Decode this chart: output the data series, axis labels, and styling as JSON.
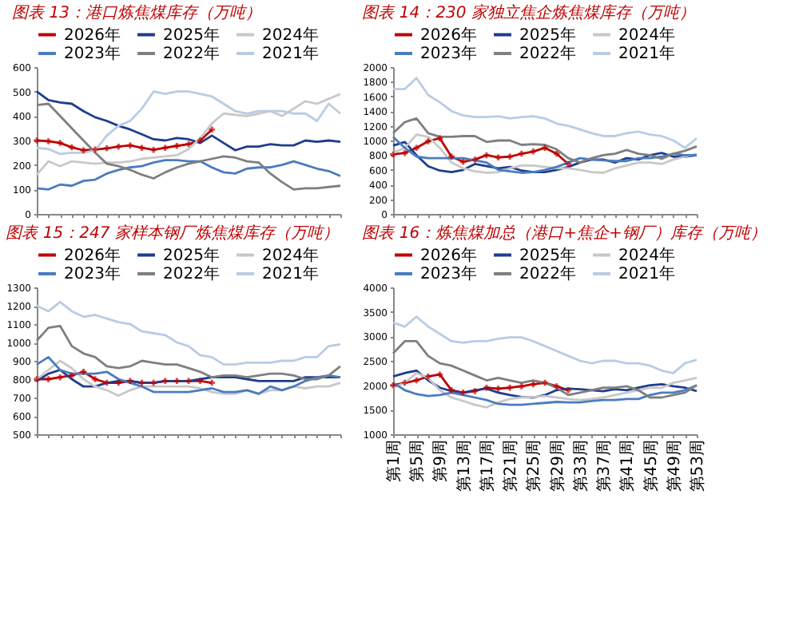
{
  "chart_data": [
    {
      "type": "line",
      "title": "图表 13：港口炼焦煤库存（万吨）",
      "categories": [
        null,
        null,
        null,
        null,
        null,
        null,
        null,
        null,
        null,
        null,
        null,
        null,
        null,
        null,
        null,
        null,
        null,
        null,
        null,
        null,
        null,
        null,
        null,
        null,
        null,
        null,
        null
      ],
      "ylim": [
        0,
        600
      ],
      "yticks": [
        0,
        100,
        200,
        300,
        400,
        500,
        600
      ],
      "tick_labels": "y",
      "legend": "top",
      "grid": false,
      "series": [
        {
          "name": "2026年",
          "color": "#c00000",
          "marker": "cross",
          "values": [
            300,
            297,
            290,
            272,
            260,
            263,
            268,
            275,
            280,
            270,
            262,
            270,
            278,
            285,
            300,
            345,
            null,
            null,
            null,
            null,
            null,
            null,
            null,
            null,
            null,
            null,
            null
          ]
        },
        {
          "name": "2025年",
          "color": "#1f3d8c",
          "values": [
            500,
            465,
            455,
            450,
            420,
            395,
            380,
            360,
            345,
            325,
            305,
            300,
            310,
            305,
            290,
            320,
            290,
            260,
            275,
            275,
            285,
            280,
            280,
            300,
            295,
            300,
            295
          ]
        },
        {
          "name": "2024年",
          "color": "#c8c8c8",
          "values": [
            160,
            215,
            195,
            215,
            210,
            205,
            210,
            210,
            215,
            225,
            230,
            235,
            240,
            265,
            310,
            370,
            410,
            405,
            400,
            410,
            420,
            400,
            430,
            460,
            450,
            470,
            490
          ]
        },
        {
          "name": "2023年",
          "color": "#4a7cc0",
          "values": [
            105,
            100,
            120,
            115,
            135,
            140,
            165,
            180,
            190,
            195,
            210,
            220,
            220,
            215,
            215,
            190,
            170,
            165,
            185,
            190,
            190,
            200,
            215,
            200,
            185,
            175,
            155
          ]
        },
        {
          "name": "2022年",
          "color": "#7f7f7f",
          "values": [
            445,
            450,
            400,
            350,
            300,
            250,
            205,
            195,
            180,
            160,
            145,
            170,
            190,
            205,
            215,
            225,
            235,
            230,
            215,
            210,
            165,
            130,
            100,
            105,
            105,
            110,
            115
          ]
        },
        {
          "name": "2021年",
          "color": "#b8cce4",
          "values": [
            270,
            265,
            245,
            250,
            250,
            260,
            320,
            360,
            380,
            430,
            500,
            490,
            500,
            500,
            490,
            480,
            450,
            420,
            410,
            420,
            420,
            420,
            410,
            410,
            380,
            450,
            410
          ]
        }
      ]
    },
    {
      "type": "line",
      "title": "图表 14：230 家独立焦企炼焦煤库存（万吨）",
      "categories": [
        null,
        null,
        null,
        null,
        null,
        null,
        null,
        null,
        null,
        null,
        null,
        null,
        null,
        null,
        null,
        null,
        null,
        null,
        null,
        null,
        null,
        null,
        null,
        null,
        null,
        null,
        null
      ],
      "ylim": [
        0,
        2000
      ],
      "yticks": [
        0,
        200,
        400,
        600,
        800,
        1000,
        1200,
        1400,
        1600,
        1800,
        2000
      ],
      "tick_labels": "y",
      "legend": "top",
      "grid": false,
      "series": [
        {
          "name": "2026年",
          "color": "#c00000",
          "marker": "cross",
          "values": [
            810,
            830,
            900,
            990,
            1030,
            780,
            710,
            740,
            800,
            770,
            780,
            820,
            850,
            900,
            820,
            680,
            null,
            null,
            null,
            null,
            null,
            null,
            null,
            null,
            null,
            null,
            null
          ]
        },
        {
          "name": "2025年",
          "color": "#1f3d8c",
          "values": [
            930,
            980,
            800,
            650,
            590,
            570,
            600,
            680,
            650,
            620,
            640,
            590,
            570,
            570,
            600,
            640,
            700,
            740,
            740,
            700,
            760,
            740,
            800,
            830,
            780,
            780,
            800
          ]
        },
        {
          "name": "2024年",
          "color": "#c8c8c8",
          "values": [
            830,
            900,
            1080,
            1050,
            900,
            700,
            620,
            580,
            560,
            570,
            620,
            660,
            660,
            640,
            620,
            620,
            600,
            570,
            560,
            620,
            660,
            700,
            700,
            680,
            740,
            780,
            820
          ]
        },
        {
          "name": "2023年",
          "color": "#4a7cc0",
          "values": [
            1050,
            900,
            780,
            760,
            760,
            760,
            760,
            730,
            700,
            600,
            580,
            560,
            570,
            600,
            640,
            700,
            760,
            740,
            730,
            720,
            720,
            760,
            760,
            780,
            820,
            800,
            800
          ]
        },
        {
          "name": "2022年",
          "color": "#7f7f7f",
          "values": [
            1100,
            1250,
            1300,
            1100,
            1050,
            1050,
            1060,
            1060,
            980,
            1000,
            1000,
            940,
            950,
            940,
            880,
            760,
            700,
            760,
            800,
            820,
            870,
            820,
            800,
            750,
            820,
            860,
            920
          ]
        },
        {
          "name": "2021年",
          "color": "#b8cce4",
          "values": [
            1700,
            1700,
            1850,
            1620,
            1520,
            1400,
            1340,
            1320,
            1320,
            1330,
            1300,
            1320,
            1330,
            1300,
            1230,
            1200,
            1150,
            1100,
            1060,
            1060,
            1100,
            1120,
            1080,
            1060,
            1000,
            900,
            1030
          ]
        }
      ]
    },
    {
      "type": "line",
      "title": "图表 15：247 家样本钢厂炼焦煤库存（万吨）",
      "categories": [
        null,
        null,
        null,
        null,
        null,
        null,
        null,
        null,
        null,
        null,
        null,
        null,
        null,
        null,
        null,
        null,
        null,
        null,
        null,
        null,
        null,
        null,
        null,
        null,
        null,
        null,
        null
      ],
      "ylim": [
        500,
        1300
      ],
      "yticks": [
        500,
        600,
        700,
        800,
        900,
        1000,
        1100,
        1200,
        1300
      ],
      "tick_labels": "y",
      "legend": "top",
      "grid": false,
      "series": [
        {
          "name": "2026年",
          "color": "#c00000",
          "marker": "cross",
          "values": [
            800,
            800,
            810,
            820,
            840,
            800,
            780,
            780,
            790,
            780,
            780,
            790,
            790,
            790,
            790,
            780,
            null,
            null,
            null,
            null,
            null,
            null,
            null,
            null,
            null,
            null,
            null
          ]
        },
        {
          "name": "2025年",
          "color": "#1f3d8c",
          "values": [
            790,
            830,
            850,
            800,
            760,
            760,
            780,
            790,
            790,
            780,
            780,
            790,
            790,
            790,
            800,
            810,
            810,
            810,
            800,
            790,
            790,
            790,
            790,
            810,
            810,
            810,
            810
          ]
        },
        {
          "name": "2024年",
          "color": "#c8c8c8",
          "values": [
            800,
            850,
            900,
            860,
            800,
            760,
            740,
            710,
            740,
            760,
            760,
            760,
            760,
            760,
            750,
            730,
            720,
            720,
            740,
            720,
            740,
            740,
            760,
            750,
            760,
            760,
            780
          ]
        },
        {
          "name": "2023年",
          "color": "#4a7cc0",
          "values": [
            880,
            920,
            850,
            830,
            830,
            830,
            840,
            800,
            780,
            760,
            730,
            730,
            730,
            730,
            740,
            750,
            730,
            730,
            740,
            720,
            760,
            740,
            760,
            790,
            810,
            820,
            810
          ]
        },
        {
          "name": "2022年",
          "color": "#7f7f7f",
          "values": [
            1010,
            1080,
            1090,
            980,
            940,
            920,
            870,
            860,
            870,
            900,
            890,
            880,
            880,
            860,
            840,
            810,
            820,
            820,
            810,
            820,
            830,
            830,
            820,
            800,
            800,
            820,
            870
          ]
        },
        {
          "name": "2021年",
          "color": "#b8cce4",
          "values": [
            1200,
            1170,
            1220,
            1170,
            1140,
            1150,
            1130,
            1110,
            1100,
            1060,
            1050,
            1040,
            1000,
            980,
            930,
            920,
            880,
            880,
            890,
            890,
            890,
            900,
            900,
            920,
            920,
            980,
            990
          ]
        }
      ]
    },
    {
      "type": "line",
      "title": "图表 16：炼焦煤加总（港口+焦企+钢厂）库存（万吨）",
      "categories": [
        "第1周",
        null,
        "第5周",
        null,
        "第9周",
        null,
        "第13周",
        null,
        "第17周",
        null,
        "第21周",
        null,
        "第25周",
        null,
        "第29周",
        null,
        "第33周",
        null,
        "第37周",
        null,
        "第41周",
        null,
        "第45周",
        null,
        "第49周",
        null,
        "第53周"
      ],
      "ylim": [
        1000,
        4000
      ],
      "yticks": [
        1000,
        1500,
        2000,
        2500,
        3000,
        3500,
        4000
      ],
      "legend": "top",
      "grid": false,
      "series": [
        {
          "name": "2026年",
          "color": "#c00000",
          "marker": "cross",
          "values": [
            2000,
            2050,
            2100,
            2180,
            2220,
            1900,
            1850,
            1880,
            1950,
            1930,
            1950,
            1980,
            2020,
            2050,
            1980,
            1900,
            null,
            null,
            null,
            null,
            null,
            null,
            null,
            null,
            null,
            null,
            null
          ]
        },
        {
          "name": "2025年",
          "color": "#1f3d8c",
          "values": [
            2180,
            2250,
            2300,
            2100,
            1950,
            1880,
            1850,
            1900,
            1930,
            1850,
            1800,
            1760,
            1750,
            1800,
            1900,
            1930,
            1920,
            1900,
            1880,
            1920,
            1900,
            1950,
            2000,
            2020,
            1980,
            1950,
            1880
          ]
        },
        {
          "name": "2024年",
          "color": "#c8c8c8",
          "values": [
            1950,
            2050,
            2250,
            2150,
            1900,
            1750,
            1680,
            1600,
            1550,
            1650,
            1720,
            1750,
            1760,
            1780,
            1750,
            1720,
            1700,
            1720,
            1750,
            1800,
            1850,
            1900,
            1950,
            1950,
            2050,
            2100,
            2150
          ]
        },
        {
          "name": "2023年",
          "color": "#4a7cc0",
          "values": [
            2050,
            1900,
            1820,
            1780,
            1800,
            1850,
            1800,
            1750,
            1700,
            1620,
            1600,
            1600,
            1620,
            1640,
            1660,
            1650,
            1650,
            1680,
            1700,
            1700,
            1720,
            1720,
            1800,
            1850,
            1850,
            1900,
            2000
          ]
        },
        {
          "name": "2022年",
          "color": "#7f7f7f",
          "values": [
            2650,
            2900,
            2900,
            2600,
            2450,
            2400,
            2300,
            2200,
            2100,
            2150,
            2100,
            2050,
            2100,
            2050,
            1950,
            1800,
            1850,
            1900,
            1950,
            1950,
            1980,
            1900,
            1750,
            1750,
            1800,
            1850,
            2000
          ]
        },
        {
          "name": "2021年",
          "color": "#b8cce4",
          "values": [
            3280,
            3200,
            3400,
            3200,
            3050,
            2900,
            2870,
            2900,
            2900,
            2950,
            2980,
            2980,
            2900,
            2800,
            2700,
            2600,
            2500,
            2450,
            2500,
            2500,
            2450,
            2450,
            2400,
            2300,
            2250,
            2450,
            2520
          ]
        }
      ]
    }
  ]
}
